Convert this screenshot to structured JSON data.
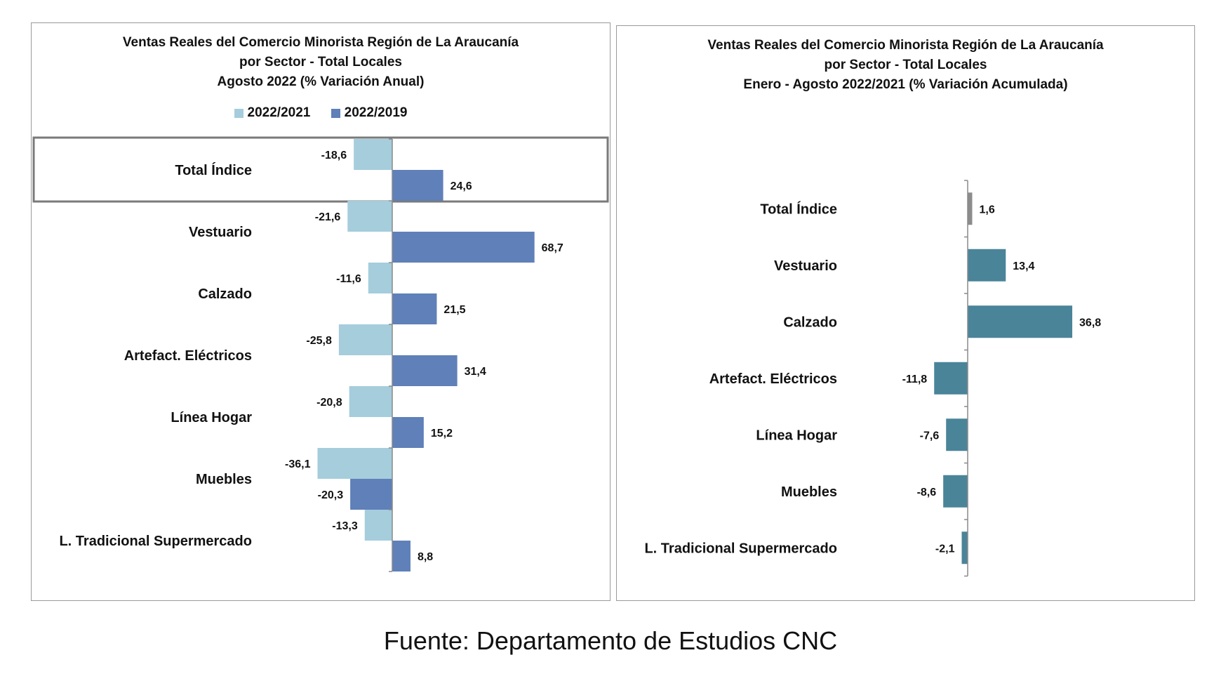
{
  "colors": {
    "series_2022_2021": "#a5cddc",
    "series_2022_2019": "#5f80b8",
    "accumulated_bar": "#4a8499",
    "total_bar": "#8c8c8c",
    "highlight_box": "#7a7a7a"
  },
  "chart_data": [
    {
      "type": "bar",
      "orientation": "horizontal",
      "title": "Ventas Reales del Comercio Minorista  Región de La Araucanía",
      "title_line2": "por Sector  - Total Locales",
      "subtitle": "Agosto 2022 (% Variación Anual)",
      "categories": [
        "Total Índice",
        "Vestuario",
        "Calzado",
        "Artefact. Eléctricos",
        "Línea Hogar",
        "Muebles",
        "L. Tradicional Supermercado"
      ],
      "series": [
        {
          "name": "2022/2021",
          "values": [
            -18.6,
            -21.6,
            -11.6,
            -25.8,
            -20.8,
            -36.1,
            -13.3
          ],
          "labels": [
            "-18,6",
            "-21,6",
            "-11,6",
            "-25,8",
            "-20,8",
            "-36,1",
            "-13,3"
          ]
        },
        {
          "name": "2022/2019",
          "values": [
            24.6,
            68.7,
            21.5,
            31.4,
            15.2,
            -20.3,
            8.8
          ],
          "labels": [
            "24,6",
            "68,7",
            "21,5",
            "31,4",
            "15,2",
            "-20,3",
            "8,8"
          ]
        }
      ],
      "highlighted_category": "Total Índice",
      "legend_position": "top",
      "grid": false
    },
    {
      "type": "bar",
      "orientation": "horizontal",
      "title": "Ventas Reales del Comercio Minorista Región de La Araucanía",
      "title_line2": "por Sector - Total Locales",
      "subtitle": "Enero - Agosto 2022/2021 (% Variación Acumulada)",
      "categories": [
        "Total Índice",
        "Vestuario",
        "Calzado",
        "Artefact. Eléctricos",
        "Línea Hogar",
        "Muebles",
        "L. Tradicional Supermercado"
      ],
      "values": [
        1.6,
        13.4,
        36.8,
        -11.8,
        -7.6,
        -8.6,
        -2.1
      ],
      "labels": [
        "1,6",
        "13,4",
        "36,8",
        "-11,8",
        "-7,6",
        "-8,6",
        "-2,1"
      ],
      "grid": false
    }
  ],
  "footer": {
    "source": "Fuente: Departamento de Estudios CNC"
  }
}
